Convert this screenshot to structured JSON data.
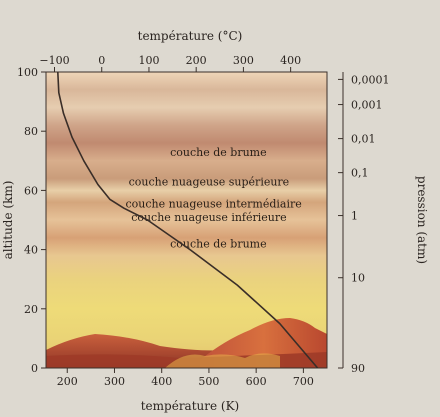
{
  "chart_data": {
    "type": "line",
    "title": "",
    "top_axis": {
      "title": "température (°C)",
      "ticks": [
        "−100",
        "0",
        "100",
        "200",
        "300",
        "400"
      ],
      "values": [
        -100,
        0,
        100,
        200,
        300,
        400
      ]
    },
    "bottom_axis": {
      "title": "température (K)",
      "ticks": [
        "200",
        "300",
        "400",
        "500",
        "600",
        "700"
      ],
      "values": [
        200,
        300,
        400,
        500,
        600,
        700
      ],
      "xlim": [
        155,
        750
      ]
    },
    "left_axis": {
      "title": "altitude (km)",
      "ticks": [
        "0",
        "20",
        "40",
        "60",
        "80",
        "100"
      ],
      "values": [
        0,
        20,
        40,
        60,
        80,
        100
      ],
      "ylim": [
        0,
        100
      ]
    },
    "right_axis": {
      "title": "pression (atm)",
      "ticks": [
        {
          "label": "0,0001",
          "altitude": 97.5
        },
        {
          "label": "0,001",
          "altitude": 89
        },
        {
          "label": "0,01",
          "altitude": 77.5
        },
        {
          "label": "0,1",
          "altitude": 66
        },
        {
          "label": "1",
          "altitude": 51.5
        },
        {
          "label": "10",
          "altitude": 30.5
        },
        {
          "label": "90",
          "altitude": 0
        }
      ]
    },
    "series": [
      {
        "color": "#3a2e28",
        "points": [
          {
            "x": 730,
            "y": 0
          },
          {
            "x": 650,
            "y": 15
          },
          {
            "x": 560,
            "y": 28
          },
          {
            "x": 460,
            "y": 40
          },
          {
            "x": 370,
            "y": 50
          },
          {
            "x": 320,
            "y": 54
          },
          {
            "x": 290,
            "y": 57
          },
          {
            "x": 265,
            "y": 62
          },
          {
            "x": 235,
            "y": 70
          },
          {
            "x": 210,
            "y": 78
          },
          {
            "x": 192,
            "y": 86
          },
          {
            "x": 182,
            "y": 93
          },
          {
            "x": 180,
            "y": 100
          }
        ]
      }
    ],
    "annotations": [
      {
        "text": "couche de brume",
        "x": 520,
        "y": 73
      },
      {
        "text": "couche nuageuse supérieure",
        "x": 500,
        "y": 63
      },
      {
        "text": "couche nuageuse intermédiaire",
        "x": 510,
        "y": 55.5
      },
      {
        "text": "couche nuageuse inférieure",
        "x": 500,
        "y": 51
      },
      {
        "text": "couche de brume",
        "x": 520,
        "y": 42
      }
    ]
  }
}
